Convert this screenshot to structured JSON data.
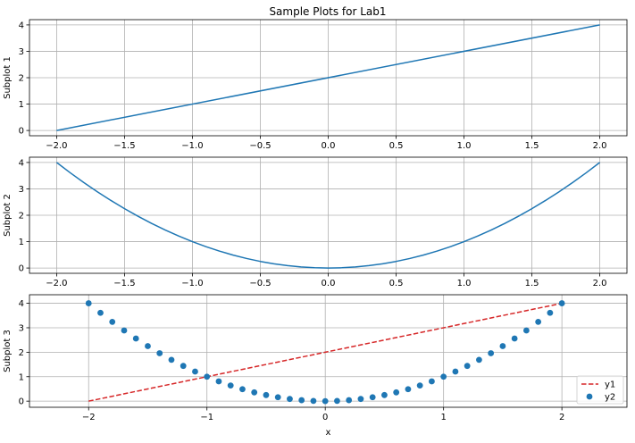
{
  "title": "Sample Plots for Lab1",
  "colors": {
    "line": "#1f77b4",
    "dashed": "#d62728",
    "grid": "#b0b0b0",
    "axes": "#000000"
  },
  "chart_data": [
    {
      "type": "line",
      "ylabel": "Subplot 1",
      "xlabel": "",
      "xlim": [
        -2.2,
        2.2
      ],
      "ylim": [
        -0.2,
        4.2
      ],
      "grid": true,
      "xticks": [
        -2.0,
        -1.5,
        -1.0,
        -0.5,
        0.0,
        0.5,
        1.0,
        1.5,
        2.0
      ],
      "xtick_labels": [
        "−2.0",
        "−1.5",
        "−1.0",
        "−0.5",
        "0.0",
        "0.5",
        "1.0",
        "1.5",
        "2.0"
      ],
      "yticks": [
        0,
        1,
        2,
        3,
        4
      ],
      "ytick_labels": [
        "0",
        "1",
        "2",
        "3",
        "4"
      ],
      "series": [
        {
          "style": "line",
          "color": "#1f77b4",
          "x": [
            -2,
            2
          ],
          "y": [
            0,
            4
          ]
        }
      ]
    },
    {
      "type": "line",
      "ylabel": "Subplot 2",
      "xlabel": "",
      "xlim": [
        -2.2,
        2.2
      ],
      "ylim": [
        -0.2,
        4.2
      ],
      "grid": true,
      "xticks": [
        -2.0,
        -1.5,
        -1.0,
        -0.5,
        0.0,
        0.5,
        1.0,
        1.5,
        2.0
      ],
      "xtick_labels": [
        "−2.0",
        "−1.5",
        "−1.0",
        "−0.5",
        "0.0",
        "0.5",
        "1.0",
        "1.5",
        "2.0"
      ],
      "yticks": [
        0,
        1,
        2,
        3,
        4
      ],
      "ytick_labels": [
        "0",
        "1",
        "2",
        "3",
        "4"
      ],
      "series": [
        {
          "style": "line",
          "color": "#1f77b4",
          "x": [
            -2.0,
            -1.9,
            -1.8,
            -1.7,
            -1.6,
            -1.5,
            -1.4,
            -1.3,
            -1.2,
            -1.1,
            -1.0,
            -0.9,
            -0.8,
            -0.7,
            -0.6,
            -0.5,
            -0.4,
            -0.3,
            -0.2,
            -0.1,
            0.0,
            0.1,
            0.2,
            0.3,
            0.4,
            0.5,
            0.6,
            0.7,
            0.8,
            0.9,
            1.0,
            1.1,
            1.2,
            1.3,
            1.4,
            1.5,
            1.6,
            1.7,
            1.8,
            1.9,
            2.0
          ],
          "y": [
            4.0,
            3.61,
            3.24,
            2.89,
            2.56,
            2.25,
            1.96,
            1.69,
            1.44,
            1.21,
            1.0,
            0.81,
            0.64,
            0.49,
            0.36,
            0.25,
            0.16,
            0.09,
            0.04,
            0.01,
            0.0,
            0.01,
            0.04,
            0.09,
            0.16,
            0.25,
            0.36,
            0.49,
            0.64,
            0.81,
            1.0,
            1.21,
            1.44,
            1.69,
            1.96,
            2.25,
            2.56,
            2.89,
            3.24,
            3.61,
            4.0
          ]
        }
      ]
    },
    {
      "type": "scatter",
      "ylabel": "Subplot 3",
      "xlabel": "x",
      "xlim": [
        -2.5,
        2.55
      ],
      "ylim": [
        -0.25,
        4.35
      ],
      "grid": true,
      "legend_position": "bottom-right",
      "xticks": [
        -2,
        -1,
        0,
        1,
        2
      ],
      "xtick_labels": [
        "−2",
        "−1",
        "0",
        "1",
        "2"
      ],
      "yticks": [
        0,
        1,
        2,
        3,
        4
      ],
      "ytick_labels": [
        "0",
        "1",
        "2",
        "3",
        "4"
      ],
      "series": [
        {
          "name": "y1",
          "style": "dashed",
          "color": "#d62728",
          "x": [
            -2,
            2
          ],
          "y": [
            0,
            4
          ]
        },
        {
          "name": "y2",
          "style": "points",
          "color": "#1f77b4",
          "x": [
            -2.0,
            -1.9,
            -1.8,
            -1.7,
            -1.6,
            -1.5,
            -1.4,
            -1.3,
            -1.2,
            -1.1,
            -1.0,
            -0.9,
            -0.8,
            -0.7,
            -0.6,
            -0.5,
            -0.4,
            -0.3,
            -0.2,
            -0.1,
            0.0,
            0.1,
            0.2,
            0.3,
            0.4,
            0.5,
            0.6,
            0.7,
            0.8,
            0.9,
            1.0,
            1.1,
            1.2,
            1.3,
            1.4,
            1.5,
            1.6,
            1.7,
            1.8,
            1.9,
            2.0
          ],
          "y": [
            4.0,
            3.61,
            3.24,
            2.89,
            2.56,
            2.25,
            1.96,
            1.69,
            1.44,
            1.21,
            1.0,
            0.81,
            0.64,
            0.49,
            0.36,
            0.25,
            0.16,
            0.09,
            0.04,
            0.01,
            0.0,
            0.01,
            0.04,
            0.09,
            0.16,
            0.25,
            0.36,
            0.49,
            0.64,
            0.81,
            1.0,
            1.21,
            1.44,
            1.69,
            1.96,
            2.25,
            2.56,
            2.89,
            3.24,
            3.61,
            4.0
          ]
        }
      ]
    }
  ]
}
